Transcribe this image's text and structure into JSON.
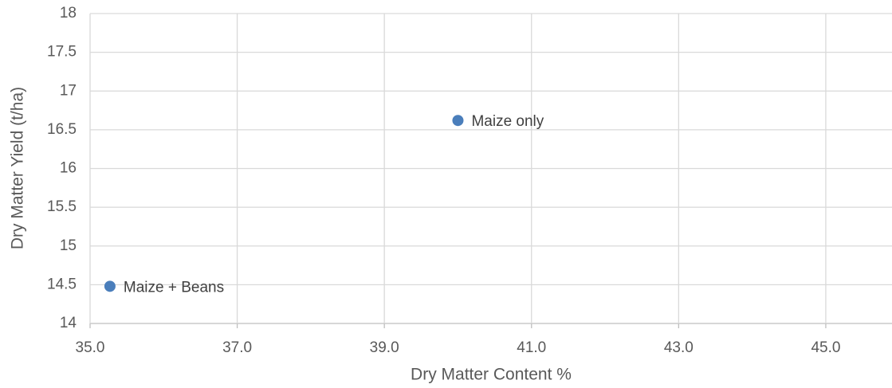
{
  "chart_data": {
    "type": "scatter",
    "x_label": "Dry Matter Content %",
    "y_label": "Dry Matter Yield (t/ha)",
    "x": [
      40.0,
      35.27
    ],
    "values": [
      16.62,
      14.48
    ],
    "labels": [
      "Maize only",
      "Maize + Beans"
    ],
    "color": "#4a7ebb",
    "xlim": [
      35,
      45.9
    ],
    "ylim": [
      14,
      18
    ],
    "xticks": [
      {
        "value": 35,
        "label": "35.0"
      },
      {
        "value": 37,
        "label": "37.0"
      },
      {
        "value": 39,
        "label": "39.0"
      },
      {
        "value": 41,
        "label": "41.0"
      },
      {
        "value": 43,
        "label": "43.0"
      },
      {
        "value": 45,
        "label": "45.0"
      }
    ],
    "yticks": [
      14,
      14.5,
      15,
      15.5,
      16,
      16.5,
      17,
      17.5,
      18
    ],
    "grid": true
  }
}
